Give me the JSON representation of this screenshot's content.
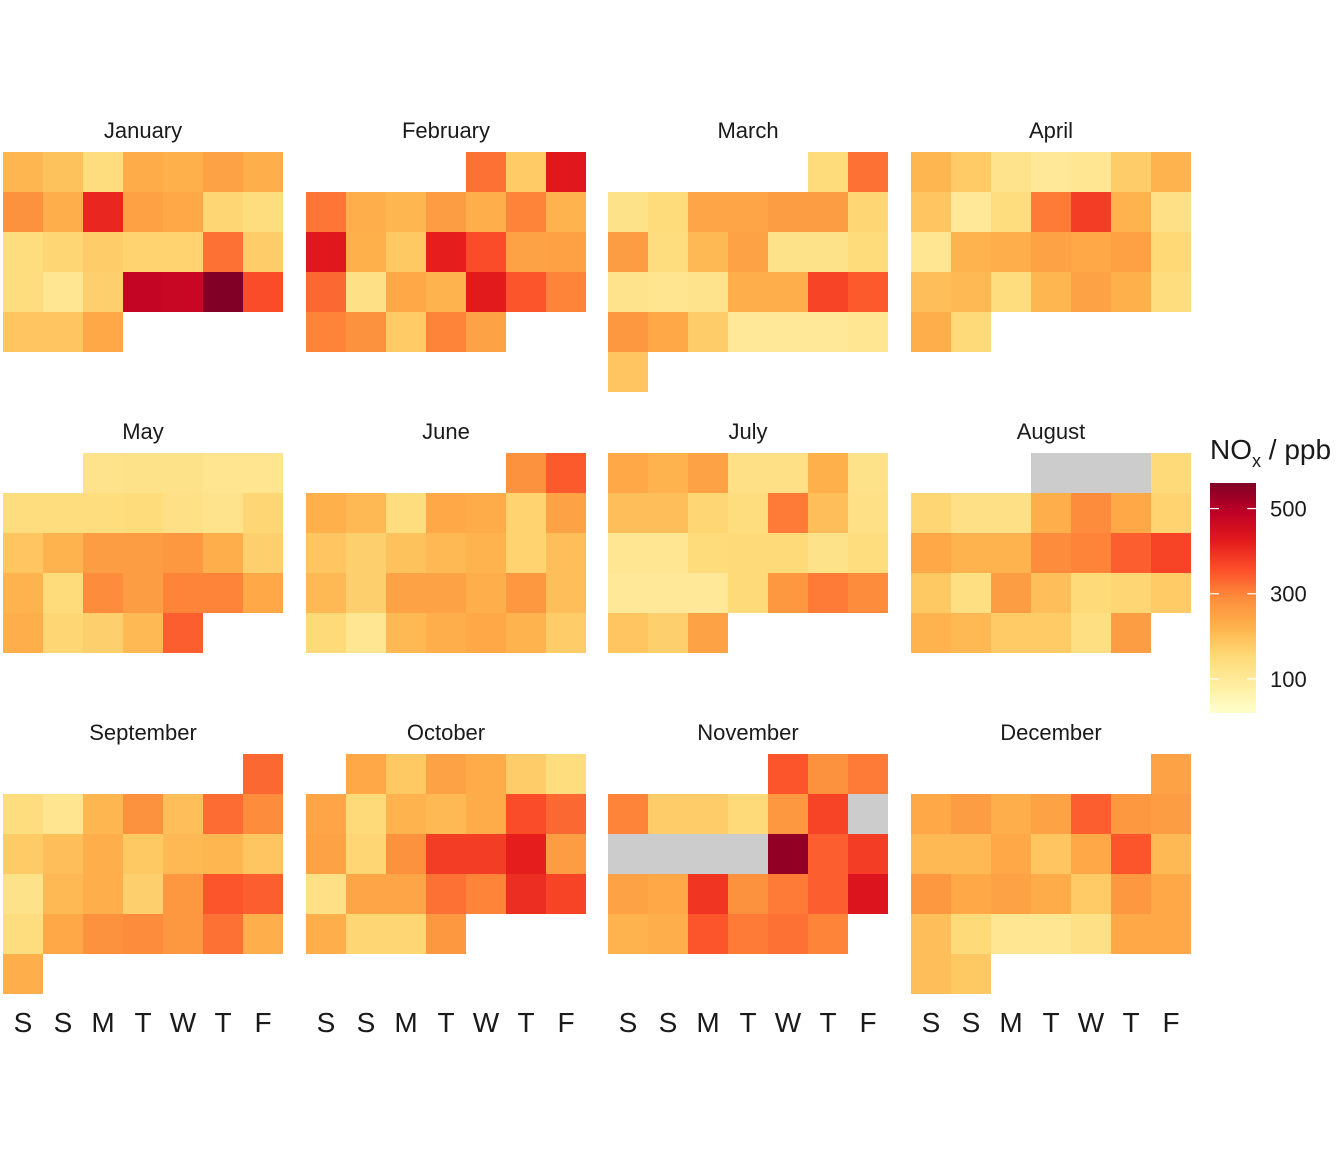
{
  "chart_data": {
    "type": "heatmap",
    "kind": "calendar",
    "legend": {
      "title_main": "NO",
      "title_sub": "x",
      "title_rest": " / ppb",
      "ticks": [
        500,
        300,
        100
      ],
      "min": 20,
      "max": 560,
      "placement": "right"
    },
    "weekday_labels": [
      "S",
      "S",
      "M",
      "T",
      "W",
      "T",
      "F"
    ],
    "missing_color": "#cccccc",
    "palette": [
      "#ffffcc",
      "#ffeda0",
      "#fed976",
      "#feb24c",
      "#fd8d3c",
      "#fc4e2a",
      "#e31a1c",
      "#bd0026",
      "#800026"
    ],
    "months": [
      {
        "name": "January",
        "start": 0,
        "values": [
          215,
          195,
          140,
          235,
          225,
          250,
          230,
          280,
          230,
          410,
          255,
          240,
          160,
          140,
          140,
          160,
          175,
          165,
          165,
          320,
          175,
          140,
          110,
          170,
          480,
          475,
          560,
          360,
          190,
          190,
          240
        ]
      },
      {
        "name": "February",
        "start": 4,
        "values": [
          320,
          180,
          430,
          315,
          230,
          215,
          260,
          230,
          300,
          220,
          430,
          225,
          185,
          420,
          360,
          250,
          255,
          330,
          130,
          240,
          220,
          425,
          350,
          300,
          300,
          280,
          180,
          300,
          250
        ]
      },
      {
        "name": "March",
        "start": 5,
        "values": [
          145,
          320,
          125,
          145,
          245,
          245,
          260,
          260,
          160,
          260,
          140,
          210,
          250,
          125,
          125,
          145,
          120,
          115,
          120,
          230,
          230,
          370,
          345,
          270,
          240,
          175,
          100,
          100,
          100,
          110,
          190
        ]
      },
      {
        "name": "April",
        "start": 0,
        "values": [
          215,
          180,
          120,
          100,
          110,
          175,
          220,
          190,
          100,
          140,
          310,
          380,
          220,
          130,
          110,
          220,
          230,
          250,
          240,
          255,
          155,
          200,
          210,
          140,
          215,
          250,
          225,
          140,
          230,
          150
        ]
      },
      {
        "name": "May",
        "start": 2,
        "values": [
          120,
          125,
          125,
          115,
          115,
          140,
          140,
          140,
          145,
          130,
          120,
          160,
          190,
          220,
          260,
          260,
          270,
          230,
          170,
          220,
          145,
          290,
          260,
          300,
          300,
          240,
          230,
          160,
          170,
          210,
          340
        ]
      },
      {
        "name": "June",
        "start": 5,
        "values": [
          280,
          345,
          225,
          210,
          140,
          240,
          235,
          165,
          250,
          190,
          170,
          195,
          210,
          220,
          165,
          200,
          210,
          170,
          250,
          250,
          230,
          270,
          200,
          150,
          110,
          210,
          230,
          240,
          220,
          175
        ]
      },
      {
        "name": "July",
        "start": 0,
        "values": [
          240,
          220,
          250,
          130,
          130,
          225,
          125,
          200,
          200,
          160,
          140,
          310,
          200,
          130,
          110,
          110,
          145,
          150,
          150,
          125,
          140,
          100,
          100,
          100,
          150,
          270,
          310,
          290,
          190,
          170,
          250
        ]
      },
      {
        "name": "August",
        "start": 3,
        "values": [
          null,
          null,
          null,
          150,
          160,
          130,
          130,
          230,
          290,
          240,
          165,
          240,
          220,
          220,
          290,
          300,
          340,
          370,
          185,
          135,
          260,
          200,
          150,
          160,
          180,
          220,
          210,
          180,
          180,
          135,
          260
        ]
      },
      {
        "name": "September",
        "start": 6,
        "values": [
          330,
          140,
          115,
          215,
          280,
          200,
          325,
          290,
          180,
          200,
          230,
          185,
          210,
          215,
          190,
          125,
          210,
          230,
          170,
          270,
          350,
          340,
          140,
          240,
          280,
          290,
          270,
          320,
          230,
          230
        ]
      },
      {
        "name": "October",
        "start": 1,
        "values": [
          240,
          185,
          250,
          235,
          175,
          140,
          245,
          150,
          220,
          210,
          235,
          360,
          330,
          250,
          160,
          280,
          380,
          380,
          420,
          260,
          130,
          245,
          245,
          320,
          300,
          400,
          370,
          230,
          160,
          160,
          270
        ]
      },
      {
        "name": "November",
        "start": 4,
        "values": [
          350,
          280,
          310,
          300,
          175,
          175,
          150,
          270,
          370,
          null,
          null,
          null,
          null,
          null,
          540,
          340,
          380,
          250,
          240,
          390,
          280,
          310,
          340,
          440,
          220,
          230,
          350,
          310,
          320,
          300
        ]
      },
      {
        "name": "December",
        "start": 6,
        "values": [
          250,
          240,
          260,
          230,
          250,
          340,
          270,
          260,
          210,
          210,
          240,
          190,
          240,
          350,
          210,
          270,
          240,
          250,
          235,
          180,
          270,
          240,
          200,
          150,
          110,
          110,
          130,
          240,
          240,
          200,
          185
        ]
      }
    ]
  }
}
